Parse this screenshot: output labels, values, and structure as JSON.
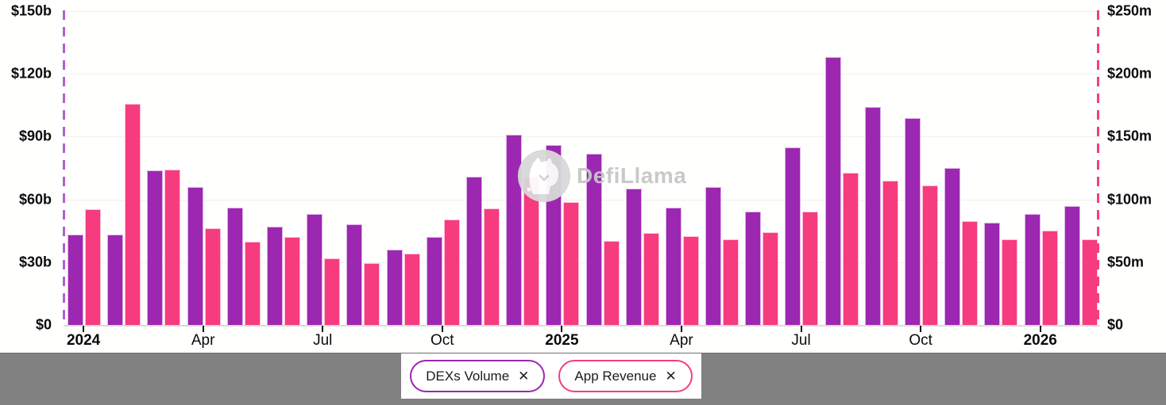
{
  "watermark": {
    "text": "DefiLlama"
  },
  "colors": {
    "dexs_volume": "#9c27b0",
    "dexs_volume_border": "#ddb0ea",
    "app_revenue": "#f63b7f",
    "app_revenue_border": "#ffbcd4",
    "brush_line_left": "#b45fd1",
    "brush_line_right": "#f53d7f",
    "gridline": "#f0f0ef",
    "bottom_bar": "#818181"
  },
  "chart_data": {
    "type": "bar",
    "title": "",
    "grid": true,
    "legend_position": "bottom",
    "categories": [
      "Jan 2024",
      "Feb 2024",
      "Mar 2024",
      "Apr 2024",
      "May 2024",
      "Jun 2024",
      "Jul 2024",
      "Aug 2024",
      "Sep 2024",
      "Oct 2024",
      "Nov 2024",
      "Dec 2024",
      "Jan 2025",
      "Feb 2025",
      "Mar 2025",
      "Apr 2025",
      "May 2025",
      "Jun 2025",
      "Jul 2025",
      "Aug 2025",
      "Sep 2025",
      "Oct 2025",
      "Nov 2025",
      "Dec 2025",
      "Jan 2026",
      "Feb 2026"
    ],
    "series": [
      {
        "name": "DEXs Volume",
        "axis": "left",
        "unit": "billions USD",
        "color": "#9c27b0",
        "values": [
          43,
          43,
          74,
          66,
          56,
          47,
          53,
          48,
          36,
          42,
          71,
          91,
          86,
          82,
          65,
          56,
          66,
          54,
          85,
          128,
          104,
          99,
          75,
          49,
          53,
          57
        ]
      },
      {
        "name": "App Revenue",
        "axis": "right",
        "unit": "millions USD",
        "color": "#f63b7f",
        "values": [
          92,
          176,
          124,
          77,
          66,
          70,
          53,
          49,
          57,
          84,
          93,
          118,
          98,
          67,
          73,
          71,
          68,
          74,
          90,
          121,
          115,
          111,
          83,
          68,
          75,
          68
        ]
      }
    ],
    "left_axis": {
      "min": 0,
      "max": 150,
      "tick_labels_top_to_bottom": [
        "$150b",
        "$120b",
        "$90b",
        "$60b",
        "$30b",
        "$0"
      ]
    },
    "right_axis": {
      "min": 0,
      "max": 250,
      "tick_labels_top_to_bottom": [
        "$250m",
        "$200m",
        "$150m",
        "$100m",
        "$50m",
        "$0"
      ]
    },
    "x_tick_labels": [
      {
        "index": 0,
        "label": "2024",
        "emphasis": true
      },
      {
        "index": 3,
        "label": "Apr"
      },
      {
        "index": 6,
        "label": "Jul"
      },
      {
        "index": 9,
        "label": "Oct"
      },
      {
        "index": 12,
        "label": "2025",
        "emphasis": true
      },
      {
        "index": 15,
        "label": "Apr"
      },
      {
        "index": 18,
        "label": "Jul"
      },
      {
        "index": 21,
        "label": "Oct"
      },
      {
        "index": 24,
        "label": "2026",
        "emphasis": true
      }
    ]
  },
  "legend": {
    "items": [
      {
        "label": "DEXs Volume",
        "close_label": "✕",
        "color": "#9c27b0"
      },
      {
        "label": "App Revenue",
        "close_label": "✕",
        "color": "#f63b7f"
      }
    ]
  }
}
